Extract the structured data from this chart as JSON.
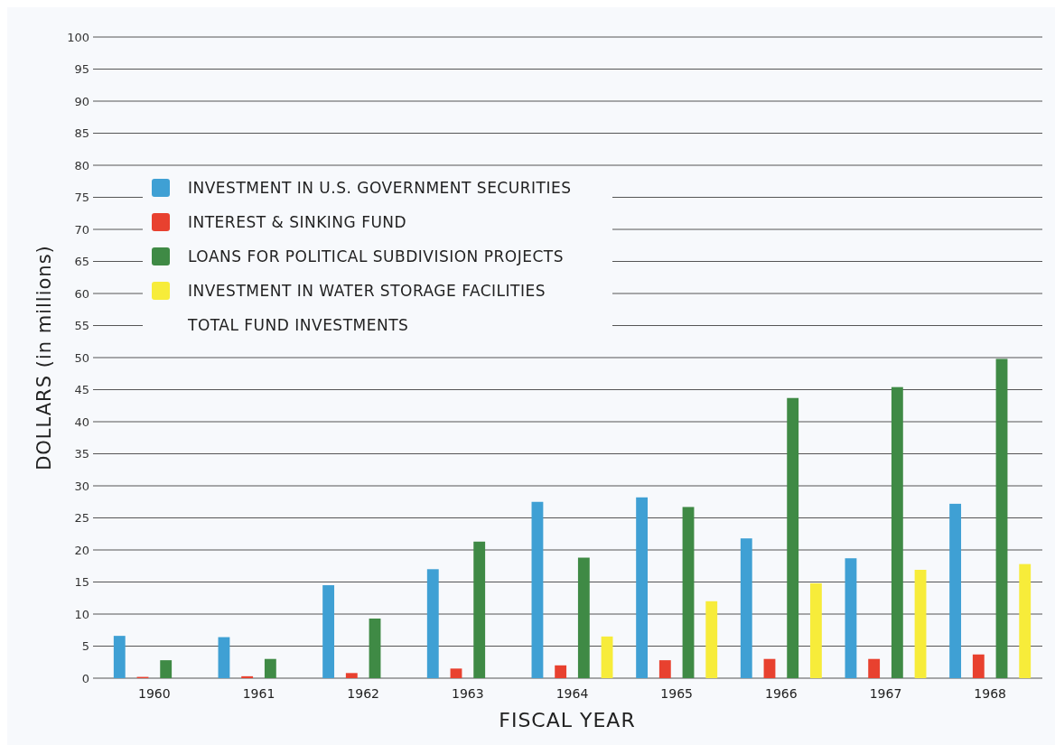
{
  "chart_data": {
    "type": "bar",
    "xlabel": "FISCAL YEAR",
    "ylabel": "DOLLARS (in millions)",
    "categories": [
      "1960",
      "1961",
      "1962",
      "1963",
      "1964",
      "1965",
      "1966",
      "1967",
      "1968"
    ],
    "series": [
      {
        "name": "INVESTMENT IN U.S. GOVERNMENT SECURITIES",
        "color": "#3fa0d4",
        "values": [
          6.6,
          6.4,
          14.5,
          17.0,
          27.5,
          28.2,
          21.8,
          18.7,
          27.2
        ]
      },
      {
        "name": "INTEREST & SINKING FUND",
        "color": "#e8412f",
        "values": [
          0.2,
          0.3,
          0.8,
          1.5,
          2.0,
          2.8,
          3.0,
          3.0,
          3.7
        ]
      },
      {
        "name": "LOANS FOR  POLITICAL SUBDIVISION PROJECTS",
        "color": "#3f8a45",
        "values": [
          2.8,
          3.0,
          9.3,
          21.3,
          18.8,
          26.7,
          43.7,
          45.4,
          49.8
        ]
      },
      {
        "name": "INVESTMENT IN WATER STORAGE FACILITIES",
        "color": "#f7ec3a",
        "values": [
          null,
          null,
          null,
          null,
          6.5,
          12.0,
          14.8,
          16.9,
          17.8
        ]
      }
    ],
    "annotations": [
      "TOTAL FUND INVESTMENTS"
    ],
    "ylim": [
      0,
      100
    ],
    "yticks": [
      0,
      5,
      10,
      15,
      20,
      25,
      30,
      35,
      40,
      45,
      50,
      55,
      60,
      65,
      70,
      75,
      80,
      85,
      90,
      95,
      100
    ],
    "grid": "y",
    "legend": "top left"
  }
}
